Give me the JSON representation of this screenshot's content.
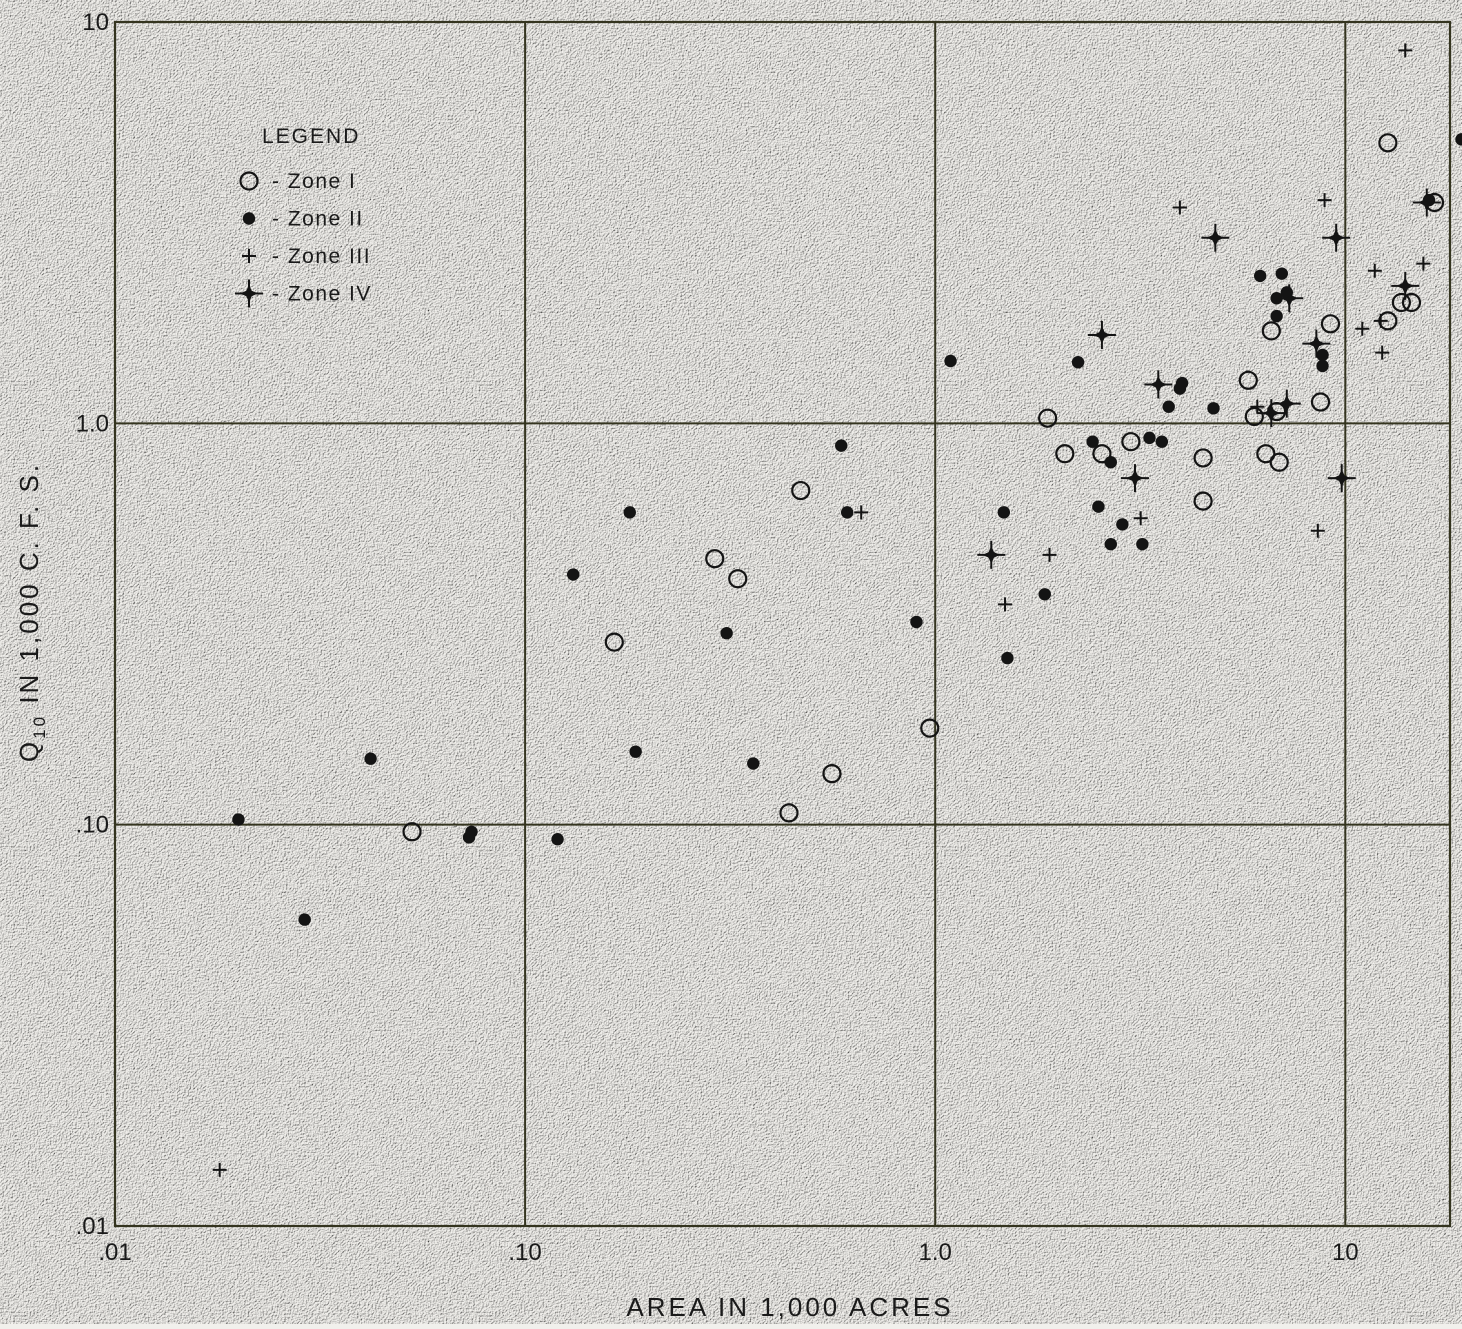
{
  "chart_data": {
    "type": "scatter",
    "x_scale": "log",
    "y_scale": "log",
    "xlim": [
      0.01,
      18
    ],
    "ylim": [
      0.01,
      10
    ],
    "grid": true,
    "xlabel": "AREA IN 1,000 ACRES",
    "ylabel_main": "Q",
    "ylabel_sub": "10",
    "ylabel_rest": " IN 1,000 C. F. S.",
    "x_ticks": [
      {
        "value": 0.01,
        "label": ".01"
      },
      {
        "value": 0.1,
        "label": ".10"
      },
      {
        "value": 1,
        "label": "1.0"
      },
      {
        "value": 10,
        "label": "10"
      }
    ],
    "y_ticks": [
      {
        "value": 0.01,
        "label": ".01"
      },
      {
        "value": 0.1,
        "label": ".10"
      },
      {
        "value": 1,
        "label": "1.0"
      },
      {
        "value": 10,
        "label": "10"
      }
    ],
    "legend": {
      "title": "LEGEND",
      "position": "top-left",
      "entries": [
        {
          "marker": "open-circle",
          "label": "- Zone I"
        },
        {
          "marker": "filled-circle",
          "label": "- Zone II"
        },
        {
          "marker": "plus",
          "label": "- Zone III"
        },
        {
          "marker": "star-plus",
          "label": "- Zone IV"
        }
      ]
    },
    "series": [
      {
        "name": "- Zone I",
        "marker": "open-circle",
        "points": [
          [
            0.053,
            0.096
          ],
          [
            0.165,
            0.285
          ],
          [
            0.29,
            0.46
          ],
          [
            0.33,
            0.41
          ],
          [
            0.47,
            0.68
          ],
          [
            0.44,
            0.107
          ],
          [
            0.56,
            0.134
          ],
          [
            0.97,
            0.174
          ],
          [
            1.88,
            1.03
          ],
          [
            2.07,
            0.84
          ],
          [
            2.55,
            0.84
          ],
          [
            3.0,
            0.9
          ],
          [
            4.5,
            0.82
          ],
          [
            4.5,
            0.64
          ],
          [
            5.8,
            1.28
          ],
          [
            6.0,
            1.04
          ],
          [
            6.4,
            0.84
          ],
          [
            6.9,
            0.8
          ],
          [
            6.6,
            1.7
          ],
          [
            6.8,
            1.07
          ],
          [
            8.7,
            1.13
          ],
          [
            9.2,
            1.77
          ],
          [
            12.7,
            5.0
          ],
          [
            12.7,
            1.8
          ],
          [
            13.7,
            2.0
          ],
          [
            14.5,
            2.0
          ],
          [
            16.5,
            3.55
          ]
        ]
      },
      {
        "name": "- Zone II",
        "marker": "filled-circle",
        "points": [
          [
            0.02,
            0.103
          ],
          [
            0.029,
            0.058
          ],
          [
            0.042,
            0.146
          ],
          [
            0.073,
            0.093
          ],
          [
            0.074,
            0.096
          ],
          [
            0.12,
            0.092
          ],
          [
            0.131,
            0.42
          ],
          [
            0.18,
            0.6
          ],
          [
            0.186,
            0.152
          ],
          [
            0.31,
            0.3
          ],
          [
            0.36,
            0.142
          ],
          [
            0.59,
            0.88
          ],
          [
            0.61,
            0.6
          ],
          [
            0.9,
            0.32
          ],
          [
            1.09,
            1.43
          ],
          [
            1.47,
            0.6
          ],
          [
            1.5,
            0.26
          ],
          [
            1.85,
            0.375
          ],
          [
            2.23,
            1.42
          ],
          [
            2.42,
            0.9
          ],
          [
            2.5,
            0.62
          ],
          [
            2.68,
            0.5
          ],
          [
            2.68,
            0.8
          ],
          [
            2.86,
            0.56
          ],
          [
            3.2,
            0.5
          ],
          [
            3.33,
            0.92
          ],
          [
            3.57,
            0.9
          ],
          [
            3.71,
            1.1
          ],
          [
            3.95,
            1.22
          ],
          [
            4.0,
            1.26
          ],
          [
            4.77,
            1.09
          ],
          [
            6.2,
            2.33
          ],
          [
            6.8,
            1.85
          ],
          [
            6.8,
            2.05
          ],
          [
            7.0,
            2.36
          ],
          [
            7.2,
            2.12
          ],
          [
            8.8,
            1.39
          ],
          [
            8.8,
            1.48
          ],
          [
            16.0,
            3.6
          ],
          [
            19.2,
            5.1
          ]
        ]
      },
      {
        "name": "- Zone III",
        "marker": "plus",
        "points": [
          [
            0.018,
            0.0138
          ],
          [
            0.66,
            0.6
          ],
          [
            1.48,
            0.354
          ],
          [
            1.9,
            0.47
          ],
          [
            3.17,
            0.58
          ],
          [
            3.95,
            3.45
          ],
          [
            6.1,
            1.1
          ],
          [
            8.57,
            0.54
          ],
          [
            8.9,
            3.6
          ],
          [
            11.0,
            1.72
          ],
          [
            11.8,
            2.4
          ],
          [
            12.2,
            1.8
          ],
          [
            12.3,
            1.5
          ],
          [
            14.0,
            8.5
          ],
          [
            15.5,
            2.5
          ]
        ]
      },
      {
        "name": "- Zone IV",
        "marker": "star-plus",
        "points": [
          [
            1.37,
            0.47
          ],
          [
            2.55,
            1.66
          ],
          [
            3.07,
            0.73
          ],
          [
            3.5,
            1.25
          ],
          [
            4.82,
            2.9
          ],
          [
            6.6,
            1.06
          ],
          [
            7.2,
            1.12
          ],
          [
            7.3,
            2.05
          ],
          [
            8.5,
            1.58
          ],
          [
            9.5,
            2.9
          ],
          [
            9.8,
            0.73
          ],
          [
            14.0,
            2.2
          ],
          [
            15.8,
            3.55
          ]
        ]
      }
    ]
  }
}
